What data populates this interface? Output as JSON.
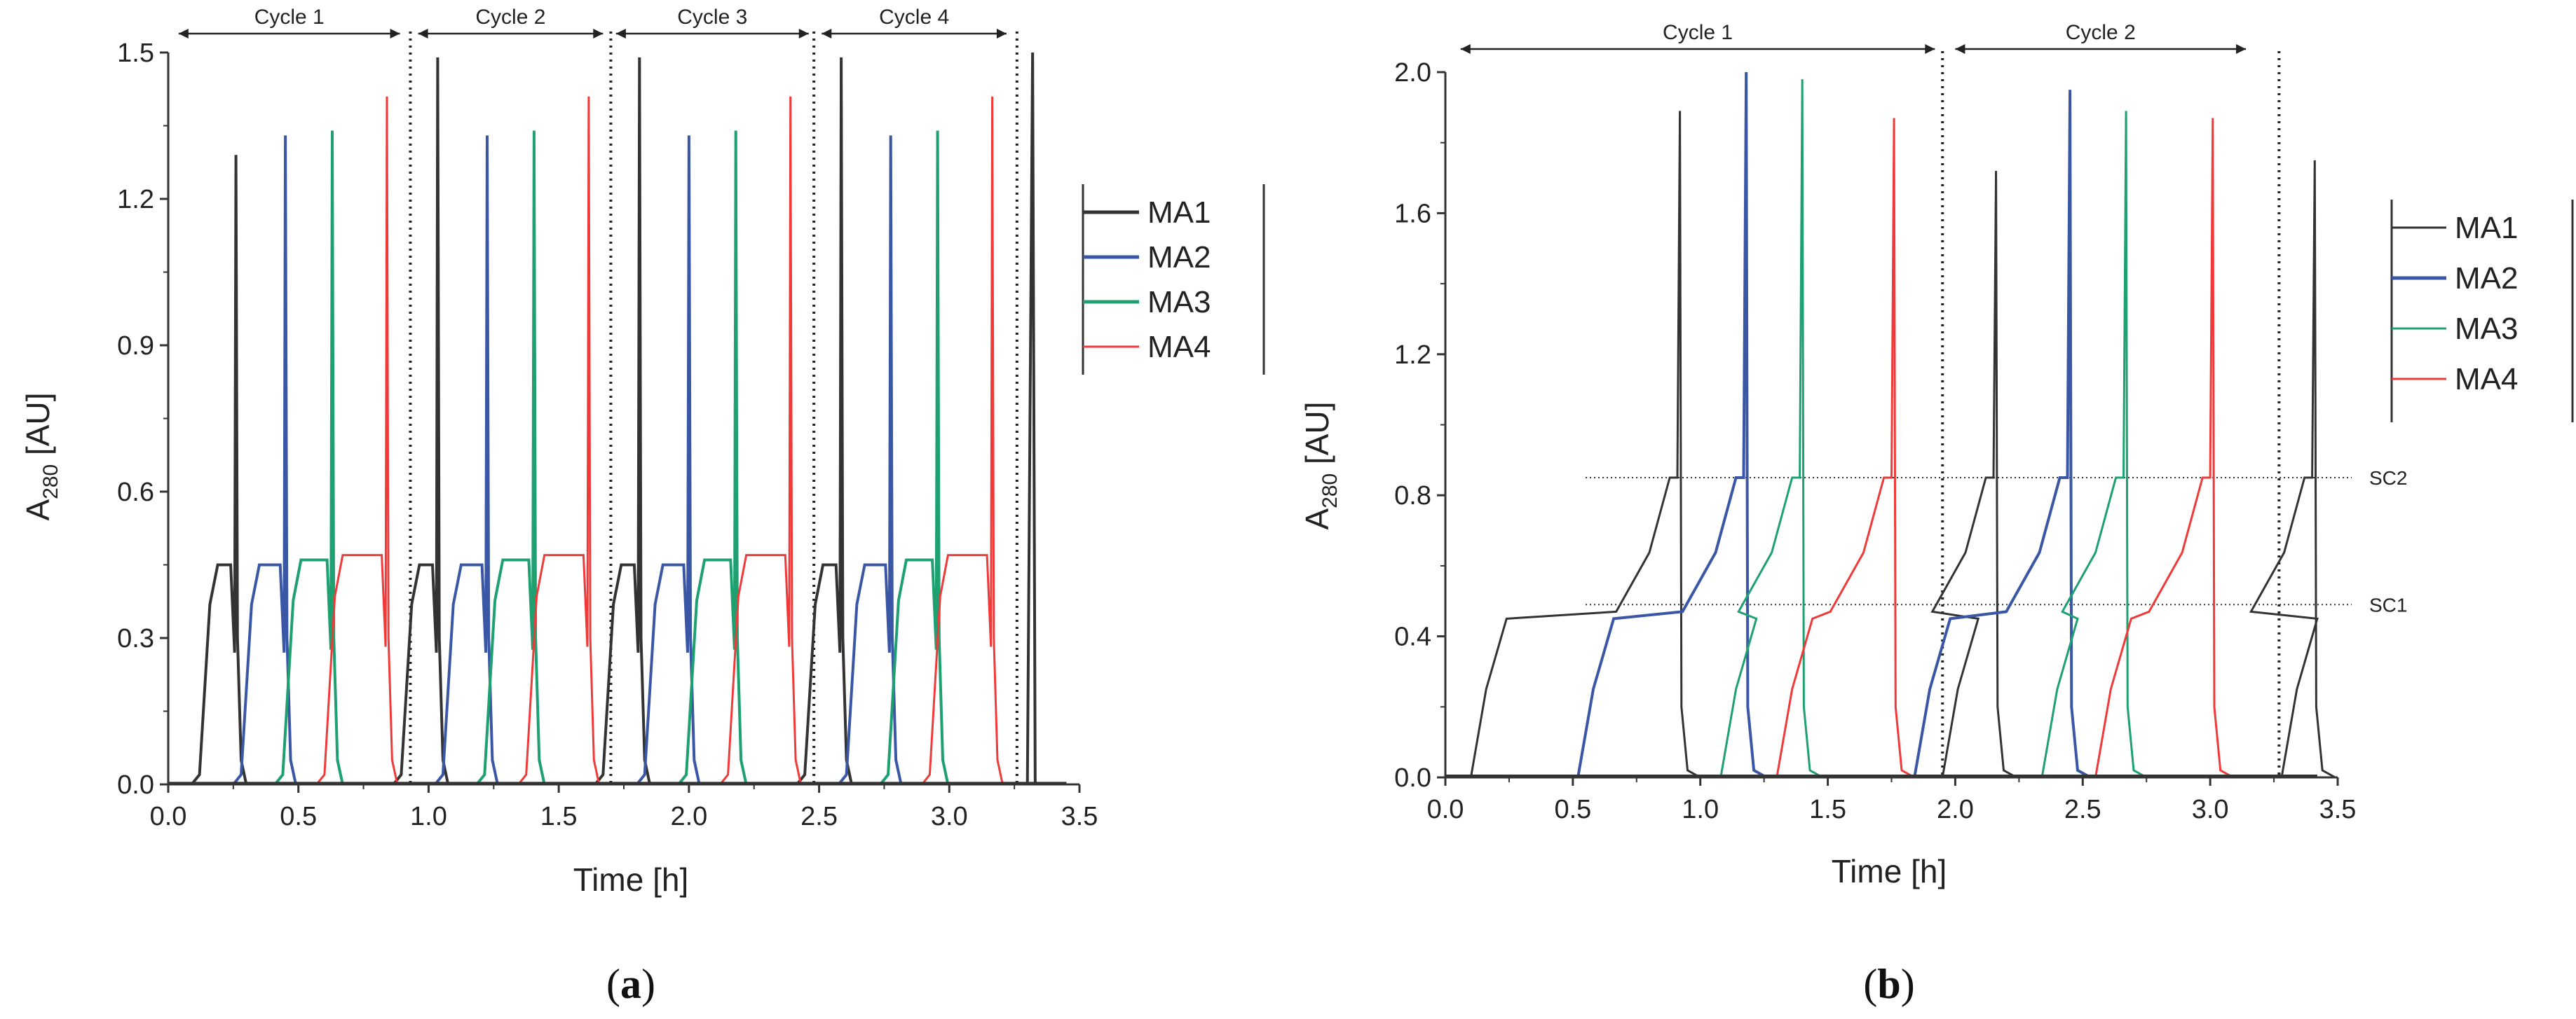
{
  "chart_data": [
    {
      "type": "line",
      "panel_label": "(",
      "panel_letter": "a",
      "panel_label_end": ")",
      "xlabel": "Time [h]",
      "ylabel_main": "A",
      "ylabel_sub": "280",
      "ylabel_unit": " [AU]",
      "xlim": [
        0.0,
        3.5
      ],
      "ylim": [
        0.0,
        1.5
      ],
      "xticks": [
        "0.0",
        "0.5",
        "1.0",
        "1.5",
        "2.0",
        "2.5",
        "3.0",
        "3.5"
      ],
      "yticks": [
        "0.0",
        "0.3",
        "0.6",
        "0.9",
        "1.2",
        "1.5"
      ],
      "cycles": [
        {
          "label": "Cycle 1",
          "start": 0.04,
          "end": 0.89
        },
        {
          "label": "Cycle 2",
          "start": 0.96,
          "end": 1.67
        },
        {
          "label": "Cycle 3",
          "start": 1.72,
          "end": 2.46
        },
        {
          "label": "Cycle 4",
          "start": 2.51,
          "end": 3.22
        }
      ],
      "dividers": [
        0.93,
        1.7,
        2.48,
        3.26
      ],
      "pulse_period": 0.775,
      "series": [
        {
          "name": "MA1",
          "color": "#333333",
          "peak_height": 1.29,
          "spike_time": 0.26,
          "trace_start": 0.12,
          "plateau": 0.45,
          "plateau_end": 0.2
        },
        {
          "name": "MA2",
          "color": "#3a57a6",
          "peak_height": 1.33,
          "spike_time": 0.45,
          "trace_start": 0.28,
          "plateau": 0.45,
          "plateau_end": 0.44
        },
        {
          "name": "MA3",
          "color": "#1ea070",
          "peak_height": 1.34,
          "spike_time": 0.63,
          "trace_start": 0.44,
          "plateau": 0.46,
          "plateau_end": 0.62
        },
        {
          "name": "MA4",
          "color": "#f03a3a",
          "peak_height": 1.41,
          "spike_time": 0.84,
          "trace_start": 0.6,
          "plateau": 0.46,
          "plateau_end": 0.84
        }
      ],
      "end_spike": {
        "series": "MA1",
        "time": 3.32,
        "value": 1.5
      }
    },
    {
      "type": "line",
      "panel_label": "(",
      "panel_letter": "b",
      "panel_label_end": ")",
      "xlabel": "Time [h]",
      "ylabel_main": "A",
      "ylabel_sub": "280",
      "ylabel_unit": " [AU]",
      "xlim": [
        0.0,
        3.5
      ],
      "ylim": [
        0.0,
        2.0
      ],
      "xticks": [
        "0.0",
        "0.5",
        "1.0",
        "1.5",
        "2.0",
        "2.5",
        "3.0",
        "3.5"
      ],
      "yticks": [
        "0.0",
        "0.4",
        "0.8",
        "1.2",
        "1.6",
        "2.0"
      ],
      "cycles": [
        {
          "label": "Cycle 1",
          "start": 0.06,
          "end": 1.92
        },
        {
          "label": "Cycle 2",
          "start": 2.0,
          "end": 3.14
        }
      ],
      "dividers": [
        1.95,
        3.27
      ],
      "reference_lines": [
        {
          "label": "SC2",
          "value": 0.85
        },
        {
          "label": "SC1",
          "value": 0.49
        }
      ],
      "series": [
        {
          "name": "MA1",
          "color": "#333333",
          "spikes": [
            {
              "t": 0.92,
              "v": 1.89
            },
            {
              "t": 2.16,
              "v": 1.72
            },
            {
              "t": 3.41,
              "v": 1.75
            }
          ]
        },
        {
          "name": "MA2",
          "color": "#3a57a6",
          "spikes": [
            {
              "t": 1.18,
              "v": 2.0
            },
            {
              "t": 2.45,
              "v": 1.95
            }
          ]
        },
        {
          "name": "MA3",
          "color": "#1ea070",
          "spikes": [
            {
              "t": 1.4,
              "v": 1.98
            },
            {
              "t": 2.67,
              "v": 1.89
            }
          ]
        },
        {
          "name": "MA4",
          "color": "#f03a3a",
          "spikes": [
            {
              "t": 1.76,
              "v": 1.87
            },
            {
              "t": 3.01,
              "v": 1.87
            }
          ]
        }
      ]
    }
  ]
}
